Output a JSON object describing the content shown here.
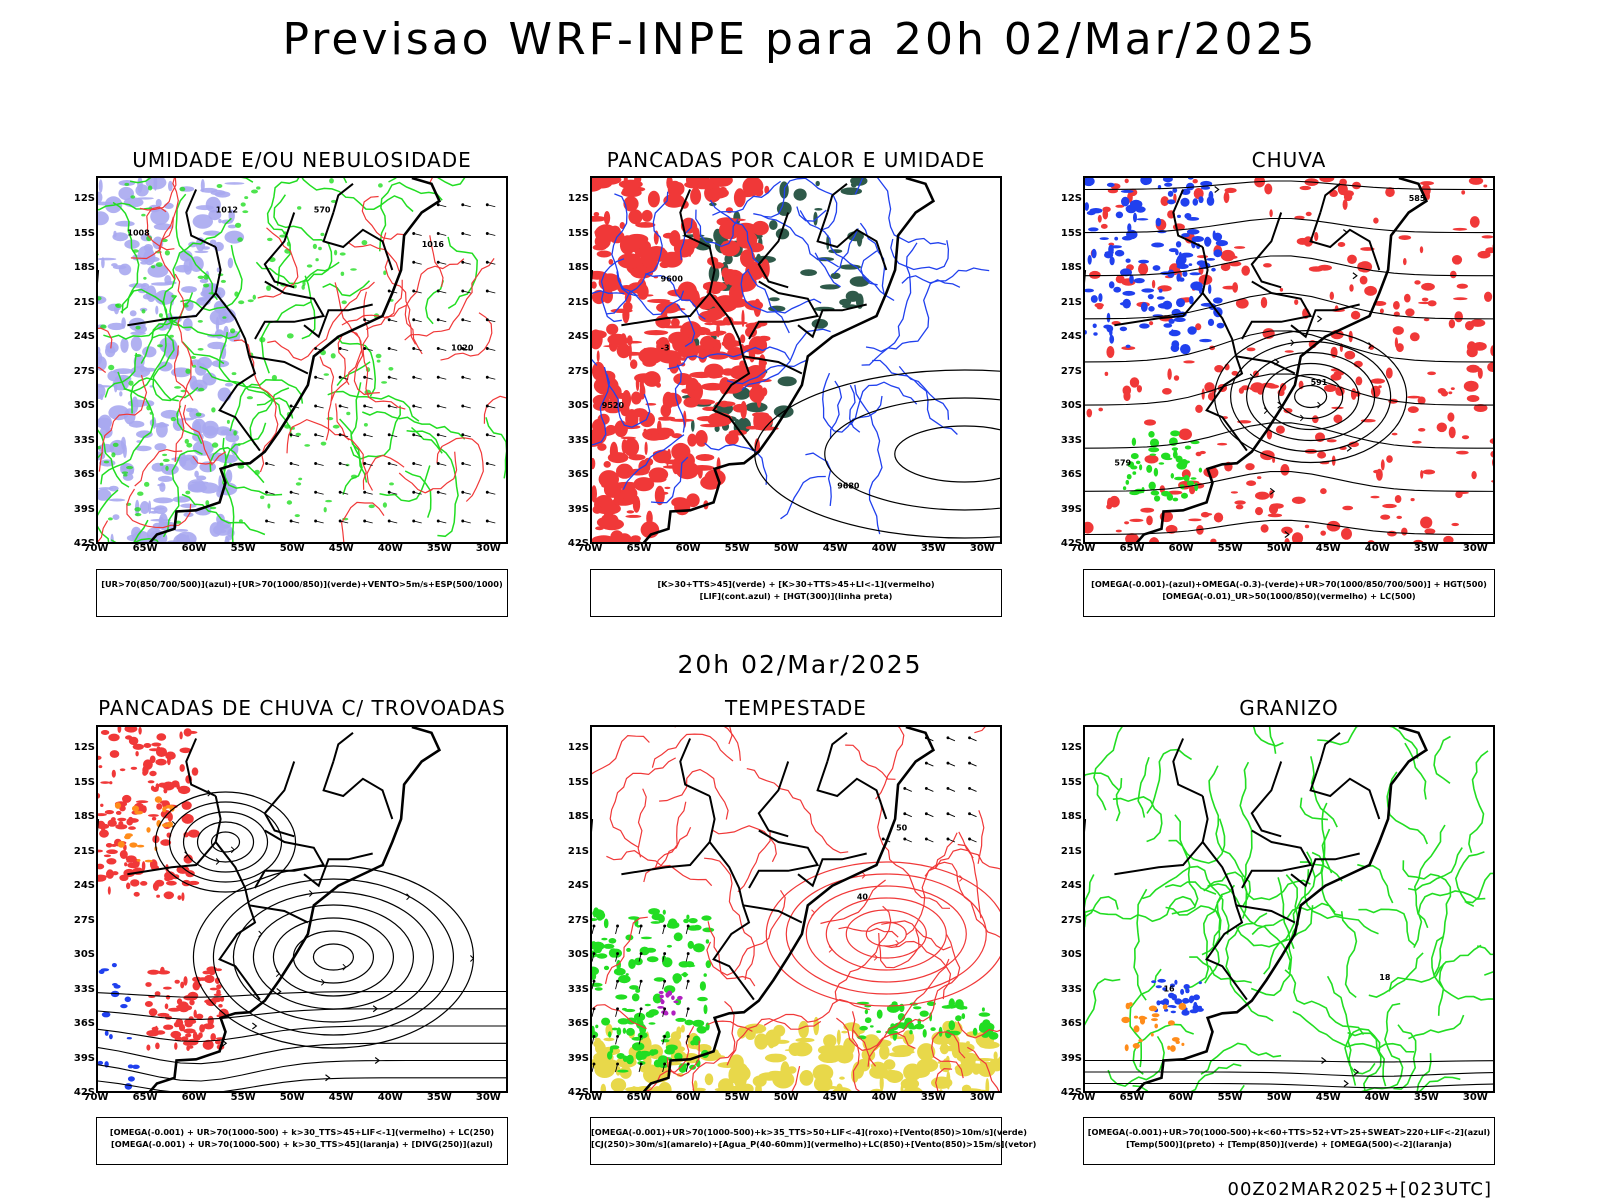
{
  "header": {
    "title": "Previsao WRF-INPE  para 20h 02/Mar/2025",
    "mid_title": "20h 02/Mar/2025",
    "footer": "00Z02MAR2025+[023UTC]"
  },
  "colors": {
    "red": "#f03838",
    "green": "#22dd22",
    "blue": "#2040ee",
    "lavender": "#a8a8f0",
    "darkgreen": "#2f5a4a",
    "yellow": "#e8d84a",
    "orange": "#ff8c1a",
    "purple": "#b020c0",
    "black": "#000000"
  },
  "chart_data": [
    {
      "type": "heatmap",
      "title": "UMIDADE E/OU NEBULOSIDADE",
      "legend": [
        "[UR>70(850/700/500)](azul)+[UR>70(1000/850)](verde)+VENTO>5m/s+ESP(500/1000)"
      ],
      "xlim": [
        -70,
        -28
      ],
      "ylim": [
        -42,
        -10
      ],
      "lat_ticks": [
        "12S",
        "15S",
        "18S",
        "21S",
        "24S",
        "27S",
        "30S",
        "33S",
        "36S",
        "39S",
        "42S"
      ],
      "lon_ticks": [
        "70W",
        "65W",
        "60W",
        "55W",
        "50W",
        "45W",
        "40W",
        "35W",
        "30W"
      ],
      "contour_labels": [
        "1012",
        "1008",
        "1016",
        "1020",
        "570"
      ],
      "layers": [
        "lavender-fill",
        "green-contours",
        "red-contours",
        "vectors"
      ]
    },
    {
      "type": "heatmap",
      "title": "PANCADAS POR CALOR E UMIDADE",
      "legend": [
        "[K>30+TTS>45](verde) + [K>30+TTS>45+LI<-1](vermelho)",
        "[LIF](cont.azul) + [HGT(300)](linha preta)"
      ],
      "xlim": [
        -70,
        -28
      ],
      "ylim": [
        -42,
        -10
      ],
      "lat_ticks": [
        "12S",
        "15S",
        "18S",
        "21S",
        "24S",
        "27S",
        "30S",
        "33S",
        "36S",
        "39S",
        "42S"
      ],
      "lon_ticks": [
        "70W",
        "65W",
        "60W",
        "55W",
        "50W",
        "45W",
        "40W",
        "35W",
        "30W"
      ],
      "contour_labels": [
        "9600",
        "9680",
        "9520",
        "-3"
      ],
      "layers": [
        "red-fill",
        "darkgreen-fill",
        "blue-contours",
        "black-contours"
      ]
    },
    {
      "type": "heatmap",
      "title": "CHUVA",
      "legend": [
        "[OMEGA(-0.001)-(azul)+OMEGA(-0.3)-(verde)+UR>70(1000/850/700/500)] + HGT(500)",
        "[OMEGA(-0.01)_UR>50(1000/850)(vermelho) + LC(500)"
      ],
      "xlim": [
        -70,
        -28
      ],
      "ylim": [
        -42,
        -10
      ],
      "lat_ticks": [
        "12S",
        "15S",
        "18S",
        "21S",
        "24S",
        "27S",
        "30S",
        "33S",
        "36S",
        "39S",
        "42S"
      ],
      "lon_ticks": [
        "70W",
        "65W",
        "60W",
        "55W",
        "50W",
        "45W",
        "40W",
        "35W",
        "30W"
      ],
      "contour_labels": [
        "585",
        "591",
        "579"
      ],
      "layers": [
        "red-fill",
        "blue-fill",
        "green-fill",
        "streamlines"
      ]
    },
    {
      "type": "heatmap",
      "title": "PANCADAS DE CHUVA C/ TROVOADAS",
      "legend": [
        "[OMEGA(-0.001) + UR>70(1000-500) + k>30_TTS>45+LIF<-1](vermelho) + LC(250)",
        "[OMEGA(-0.001) + UR>70(1000-500) + k>30_TTS>45](laranja) + [DIVG(250)](azul)"
      ],
      "xlim": [
        -70,
        -28
      ],
      "ylim": [
        -42,
        -10
      ],
      "lat_ticks": [
        "12S",
        "15S",
        "18S",
        "21S",
        "24S",
        "27S",
        "30S",
        "33S",
        "36S",
        "39S",
        "42S"
      ],
      "lon_ticks": [
        "70W",
        "65W",
        "60W",
        "55W",
        "50W",
        "45W",
        "40W",
        "35W",
        "30W"
      ],
      "contour_labels": [],
      "layers": [
        "red-fill",
        "orange-fill",
        "blue-fill",
        "streamlines"
      ]
    },
    {
      "type": "heatmap",
      "title": "TEMPESTADE",
      "legend": [
        "[OMEGA(-0.001)+UR>70(1000-500)+k>35_TTS>50+LIF<-4](roxo)+[Vento(850)>10m/s](verde)",
        "[CJ(250)>30m/s](amarelo)+[Agua_P(40-60mm)](vermelho)+LC(850)+[Vento(850)>15m/s](vetor)"
      ],
      "xlim": [
        -70,
        -28
      ],
      "ylim": [
        -42,
        -10
      ],
      "lat_ticks": [
        "12S",
        "15S",
        "18S",
        "21S",
        "24S",
        "27S",
        "30S",
        "33S",
        "36S",
        "39S",
        "42S"
      ],
      "lon_ticks": [
        "70W",
        "65W",
        "60W",
        "55W",
        "50W",
        "45W",
        "40W",
        "35W",
        "30W"
      ],
      "contour_labels": [
        "40",
        "50"
      ],
      "layers": [
        "yellow-fill",
        "green-fill",
        "purple-fill",
        "red-contours",
        "vectors"
      ]
    },
    {
      "type": "heatmap",
      "title": "GRANIZO",
      "legend": [
        "[OMEGA(-0.001)+UR>70(1000-500)+k<60+TTS>52+VT>25+SWEAT>220+LIF<-2](azul)",
        "[Temp(500)](preto) + [Temp(850)](verde) + [OMEGA(500)<-2](laranja)"
      ],
      "xlim": [
        -70,
        -28
      ],
      "ylim": [
        -42,
        -10
      ],
      "lat_ticks": [
        "12S",
        "15S",
        "18S",
        "21S",
        "24S",
        "27S",
        "30S",
        "33S",
        "36S",
        "39S",
        "42S"
      ],
      "lon_ticks": [
        "70W",
        "65W",
        "60W",
        "55W",
        "50W",
        "45W",
        "40W",
        "35W",
        "30W"
      ],
      "contour_labels": [
        "16",
        "18"
      ],
      "layers": [
        "green-contours",
        "black-contours",
        "blue-fill",
        "orange-fill"
      ]
    }
  ]
}
